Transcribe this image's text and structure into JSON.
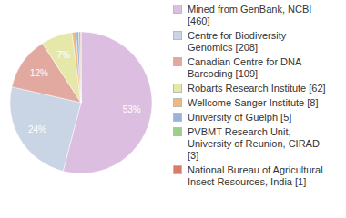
{
  "chart_data": {
    "type": "pie",
    "categories": [
      "Mined from GenBank, NCBI [460]",
      "Centre for Biodiversity Genomics [208]",
      "Canadian Centre for DNA Barcoding [109]",
      "Robarts Research Institute [62]",
      "Wellcome Sanger Institute [8]",
      "University of Guelph [5]",
      "PVBMT Research Unit, University of Reunion, CIRAD [3]",
      "National Bureau of Agricultural Insect Resources, India [1]"
    ],
    "values": [
      53,
      24,
      12,
      7,
      0.9,
      0.6,
      0.4,
      0.1
    ],
    "value_labels": [
      "53%",
      "24%",
      "12%",
      "7%",
      null,
      null,
      null,
      null
    ],
    "colors": [
      "#dcbfe0",
      "#c9d4e4",
      "#e2a9a0",
      "#e6e8a9",
      "#f0b87c",
      "#9bb3d9",
      "#9ccf8c",
      "#d97a6a"
    ],
    "data_labels": true,
    "legend": "right"
  }
}
